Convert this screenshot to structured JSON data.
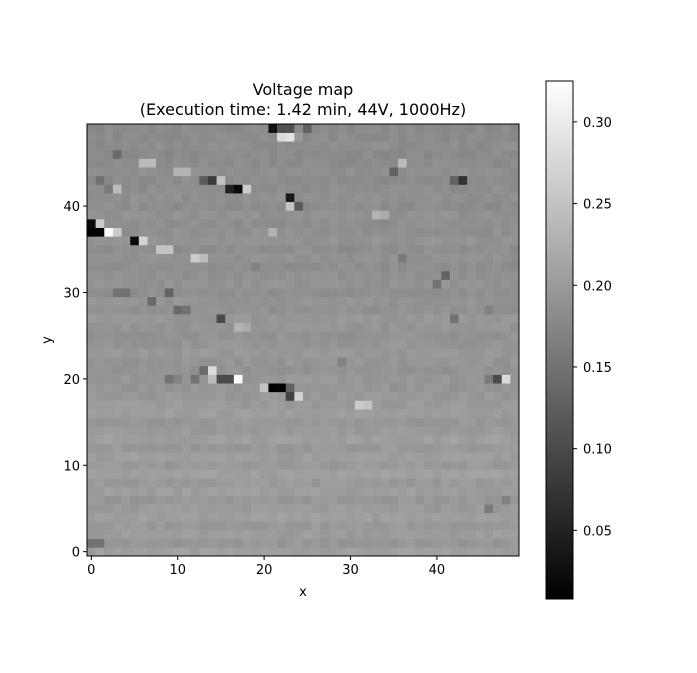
{
  "chart_data": {
    "type": "heatmap",
    "title_line1": "Voltage map",
    "title_line2": "(Execution time: 1.42 min, 44V, 1000Hz)",
    "xlabel": "x",
    "ylabel": "y",
    "nx": 50,
    "ny": 50,
    "xlim": [
      -0.5,
      49.5
    ],
    "ylim": [
      -0.5,
      49.5
    ],
    "x_ticks": [
      0,
      10,
      20,
      30,
      40
    ],
    "y_ticks": [
      0,
      10,
      20,
      30,
      40
    ],
    "colormap": "gray",
    "vmin": 0.008,
    "vmax": 0.325,
    "background_value": 0.19,
    "colorbar_ticks": [
      0.05,
      0.1,
      0.15,
      0.2,
      0.25,
      0.3
    ],
    "colorbar_tick_labels": [
      "0.05",
      "0.10",
      "0.15",
      "0.20",
      "0.25",
      "0.30"
    ],
    "row_base_values": [
      0.205,
      0.195,
      0.202,
      0.198,
      0.205,
      0.2,
      0.196,
      0.204,
      0.199,
      0.206,
      0.198,
      0.203,
      0.197,
      0.205,
      0.2,
      0.196,
      0.203,
      0.199,
      0.197,
      0.194,
      0.196,
      0.191,
      0.194,
      0.197,
      0.193,
      0.19,
      0.193,
      0.195,
      0.189,
      0.192,
      0.186,
      0.19,
      0.188,
      0.185,
      0.188,
      0.184,
      0.19,
      0.187,
      0.185,
      0.188,
      0.183,
      0.186,
      0.184,
      0.181,
      0.185,
      0.182,
      0.18,
      0.183,
      0.181,
      0.18
    ],
    "anomalies": [
      {
        "x": 0,
        "y": 37,
        "v": 0.01
      },
      {
        "x": 1,
        "y": 37,
        "v": 0.01
      },
      {
        "x": 0,
        "y": 38,
        "v": 0.02
      },
      {
        "x": 1,
        "y": 38,
        "v": 0.26
      },
      {
        "x": 2,
        "y": 37,
        "v": 0.32
      },
      {
        "x": 3,
        "y": 37,
        "v": 0.26
      },
      {
        "x": 5,
        "y": 36,
        "v": 0.02
      },
      {
        "x": 6,
        "y": 36,
        "v": 0.27
      },
      {
        "x": 8,
        "y": 35,
        "v": 0.25
      },
      {
        "x": 9,
        "y": 35,
        "v": 0.25
      },
      {
        "x": 12,
        "y": 34,
        "v": 0.26
      },
      {
        "x": 13,
        "y": 34,
        "v": 0.24
      },
      {
        "x": 21,
        "y": 19,
        "v": 0.01
      },
      {
        "x": 22,
        "y": 19,
        "v": 0.01
      },
      {
        "x": 20,
        "y": 19,
        "v": 0.25
      },
      {
        "x": 23,
        "y": 18,
        "v": 0.09
      },
      {
        "x": 24,
        "y": 18,
        "v": 0.27
      },
      {
        "x": 23,
        "y": 19,
        "v": 0.13
      },
      {
        "x": 17,
        "y": 20,
        "v": 0.32
      },
      {
        "x": 15,
        "y": 20,
        "v": 0.1
      },
      {
        "x": 16,
        "y": 20,
        "v": 0.1
      },
      {
        "x": 14,
        "y": 21,
        "v": 0.28
      },
      {
        "x": 13,
        "y": 21,
        "v": 0.14
      },
      {
        "x": 12,
        "y": 20,
        "v": 0.15
      },
      {
        "x": 9,
        "y": 20,
        "v": 0.15
      },
      {
        "x": 10,
        "y": 20,
        "v": 0.17
      },
      {
        "x": 14,
        "y": 20,
        "v": 0.24
      },
      {
        "x": 47,
        "y": 20,
        "v": 0.1
      },
      {
        "x": 48,
        "y": 20,
        "v": 0.28
      },
      {
        "x": 46,
        "y": 20,
        "v": 0.16
      },
      {
        "x": 31,
        "y": 17,
        "v": 0.26
      },
      {
        "x": 32,
        "y": 17,
        "v": 0.25
      },
      {
        "x": 16,
        "y": 42,
        "v": 0.05
      },
      {
        "x": 17,
        "y": 42,
        "v": 0.02
      },
      {
        "x": 18,
        "y": 42,
        "v": 0.26
      },
      {
        "x": 15,
        "y": 43,
        "v": 0.25
      },
      {
        "x": 14,
        "y": 43,
        "v": 0.08
      },
      {
        "x": 13,
        "y": 43,
        "v": 0.12
      },
      {
        "x": 23,
        "y": 41,
        "v": 0.04
      },
      {
        "x": 24,
        "y": 40,
        "v": 0.12
      },
      {
        "x": 23,
        "y": 40,
        "v": 0.25
      },
      {
        "x": 21,
        "y": 49,
        "v": 0.03
      },
      {
        "x": 22,
        "y": 49,
        "v": 0.11
      },
      {
        "x": 23,
        "y": 49,
        "v": 0.11
      },
      {
        "x": 22,
        "y": 48,
        "v": 0.28
      },
      {
        "x": 23,
        "y": 48,
        "v": 0.29
      },
      {
        "x": 24,
        "y": 48,
        "v": 0.2
      },
      {
        "x": 25,
        "y": 49,
        "v": 0.13
      },
      {
        "x": 42,
        "y": 43,
        "v": 0.13
      },
      {
        "x": 43,
        "y": 43,
        "v": 0.07
      },
      {
        "x": 35,
        "y": 44,
        "v": 0.13
      },
      {
        "x": 36,
        "y": 45,
        "v": 0.24
      },
      {
        "x": 41,
        "y": 32,
        "v": 0.13
      },
      {
        "x": 40,
        "y": 31,
        "v": 0.15
      },
      {
        "x": 15,
        "y": 27,
        "v": 0.1
      },
      {
        "x": 17,
        "y": 26,
        "v": 0.23
      },
      {
        "x": 18,
        "y": 26,
        "v": 0.22
      },
      {
        "x": 10,
        "y": 28,
        "v": 0.14
      },
      {
        "x": 11,
        "y": 28,
        "v": 0.15
      },
      {
        "x": 7,
        "y": 29,
        "v": 0.14
      },
      {
        "x": 9,
        "y": 30,
        "v": 0.13
      },
      {
        "x": 3,
        "y": 30,
        "v": 0.15
      },
      {
        "x": 4,
        "y": 30,
        "v": 0.15
      },
      {
        "x": 6,
        "y": 45,
        "v": 0.24
      },
      {
        "x": 7,
        "y": 45,
        "v": 0.24
      },
      {
        "x": 3,
        "y": 46,
        "v": 0.14
      },
      {
        "x": 10,
        "y": 44,
        "v": 0.23
      },
      {
        "x": 11,
        "y": 44,
        "v": 0.23
      },
      {
        "x": 2,
        "y": 42,
        "v": 0.16
      },
      {
        "x": 3,
        "y": 42,
        "v": 0.24
      },
      {
        "x": 1,
        "y": 43,
        "v": 0.15
      },
      {
        "x": 0,
        "y": 1,
        "v": 0.15
      },
      {
        "x": 1,
        "y": 1,
        "v": 0.15
      },
      {
        "x": 21,
        "y": 37,
        "v": 0.23
      },
      {
        "x": 33,
        "y": 39,
        "v": 0.23
      },
      {
        "x": 34,
        "y": 39,
        "v": 0.22
      },
      {
        "x": 36,
        "y": 34,
        "v": 0.16
      },
      {
        "x": 46,
        "y": 5,
        "v": 0.16
      },
      {
        "x": 48,
        "y": 6,
        "v": 0.17
      },
      {
        "x": 46,
        "y": 28,
        "v": 0.17
      },
      {
        "x": 42,
        "y": 27,
        "v": 0.15
      },
      {
        "x": 29,
        "y": 22,
        "v": 0.17
      },
      {
        "x": 19,
        "y": 33,
        "v": 0.17
      }
    ]
  }
}
